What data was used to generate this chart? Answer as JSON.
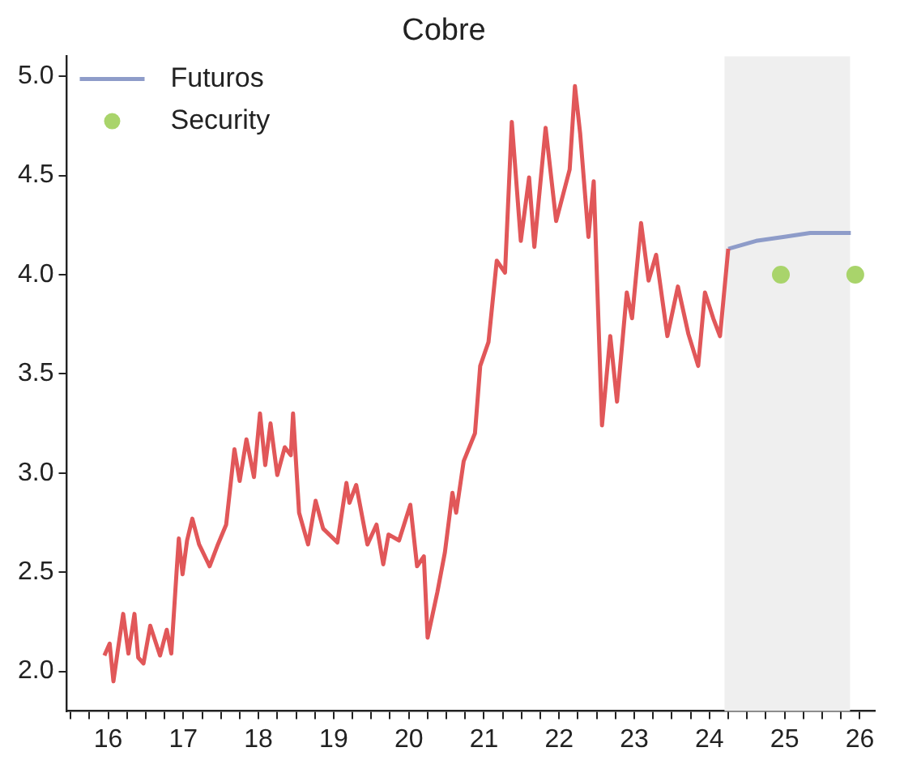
{
  "chart_data": {
    "type": "line",
    "title": "Cobre",
    "xlim": [
      15.45,
      26.2
    ],
    "xticks": [
      {
        "value": 15.5,
        "label": null
      },
      {
        "value": 15.75,
        "label": null
      },
      16,
      {
        "value": 16.25,
        "label": null
      },
      {
        "value": 16.5,
        "label": null
      },
      {
        "value": 16.75,
        "label": null
      },
      17,
      {
        "value": 17.25,
        "label": null
      },
      {
        "value": 17.5,
        "label": null
      },
      {
        "value": 17.75,
        "label": null
      },
      18,
      {
        "value": 18.25,
        "label": null
      },
      {
        "value": 18.5,
        "label": null
      },
      {
        "value": 18.75,
        "label": null
      },
      19,
      {
        "value": 19.25,
        "label": null
      },
      {
        "value": 19.5,
        "label": null
      },
      {
        "value": 19.75,
        "label": null
      },
      20,
      {
        "value": 20.25,
        "label": null
      },
      {
        "value": 20.5,
        "label": null
      },
      {
        "value": 20.75,
        "label": null
      },
      21,
      {
        "value": 21.25,
        "label": null
      },
      {
        "value": 21.5,
        "label": null
      },
      {
        "value": 21.75,
        "label": null
      },
      22,
      {
        "value": 22.25,
        "label": null
      },
      {
        "value": 22.5,
        "label": null
      },
      {
        "value": 22.75,
        "label": null
      },
      23,
      {
        "value": 23.25,
        "label": null
      },
      {
        "value": 23.5,
        "label": null
      },
      {
        "value": 23.75,
        "label": null
      },
      24,
      {
        "value": 24.25,
        "label": null
      },
      {
        "value": 24.5,
        "label": null
      },
      {
        "value": 24.75,
        "label": null
      },
      25,
      {
        "value": 25.25,
        "label": null
      },
      {
        "value": 25.5,
        "label": null
      },
      {
        "value": 25.75,
        "label": null
      },
      26
    ],
    "ylim": [
      1.8,
      5.1
    ],
    "yticks": [
      {
        "value": 2,
        "label": "2.0"
      },
      {
        "value": 2.5,
        "label": "2.5"
      },
      {
        "value": 3,
        "label": "3.0"
      },
      {
        "value": 3.5,
        "label": "3.5"
      },
      {
        "value": 4,
        "label": "4.0"
      },
      {
        "value": 4.5,
        "label": "4.5"
      },
      {
        "value": 5,
        "label": "5.0"
      }
    ],
    "grid": false,
    "legend": "top left",
    "bands": [
      {
        "axis": "x",
        "from": 24.2,
        "to": 25.87,
        "color": "#efefef"
      }
    ],
    "series": [
      {
        "color": "#e15759",
        "x": [
          15.95,
          16.02,
          16.07,
          16.13,
          16.2,
          16.27,
          16.35,
          16.4,
          16.47,
          16.56,
          16.69,
          16.78,
          16.84,
          16.91,
          16.94,
          16.99,
          17.05,
          17.12,
          17.21,
          17.35,
          17.46,
          17.57,
          17.68,
          17.75,
          17.84,
          17.94,
          18.02,
          18.09,
          18.16,
          18.25,
          18.35,
          18.43,
          18.46,
          18.54,
          18.66,
          18.76,
          18.86,
          19.05,
          19.17,
          19.21,
          19.3,
          19.45,
          19.57,
          19.66,
          19.73,
          19.87,
          20.02,
          20.11,
          20.2,
          20.25,
          20.38,
          20.48,
          20.58,
          20.63,
          20.73,
          20.88,
          20.95,
          21.06,
          21.17,
          21.28,
          21.37,
          21.49,
          21.6,
          21.67,
          21.74,
          21.82,
          21.96,
          22.14,
          22.21,
          22.28,
          22.39,
          22.46,
          22.57,
          22.68,
          22.77,
          22.9,
          22.97,
          23.09,
          23.19,
          23.29,
          23.44,
          23.58,
          23.72,
          23.85,
          23.94,
          24.05,
          24.14,
          24.19,
          24.25
        ],
        "values": [
          2.08,
          2.14,
          1.95,
          2.11,
          2.29,
          2.09,
          2.29,
          2.07,
          2.04,
          2.23,
          2.08,
          2.21,
          2.09,
          2.5,
          2.67,
          2.49,
          2.66,
          2.77,
          2.64,
          2.53,
          2.64,
          2.74,
          3.12,
          2.96,
          3.17,
          2.98,
          3.3,
          3.04,
          3.25,
          2.99,
          3.13,
          3.09,
          3.3,
          2.8,
          2.64,
          2.86,
          2.72,
          2.65,
          2.95,
          2.85,
          2.94,
          2.64,
          2.74,
          2.54,
          2.69,
          2.66,
          2.84,
          2.53,
          2.58,
          2.17,
          2.4,
          2.6,
          2.9,
          2.8,
          3.06,
          3.2,
          3.54,
          3.66,
          4.07,
          4.01,
          4.77,
          4.17,
          4.49,
          4.14,
          4.42,
          4.74,
          4.27,
          4.53,
          4.95,
          4.71,
          4.19,
          4.47,
          3.24,
          3.69,
          3.36,
          3.91,
          3.78,
          4.26,
          3.97,
          4.1,
          3.69,
          3.94,
          3.7,
          3.54,
          3.91,
          3.78,
          3.69,
          3.89,
          4.13
        ]
      },
      {
        "name": "Futuros",
        "color": "#8e9cc9",
        "x": [
          24.25,
          24.62,
          24.98,
          25.34,
          25.88
        ],
        "values": [
          4.13,
          4.17,
          4.19,
          4.21,
          4.21
        ]
      },
      {
        "type": "scatter",
        "name": "Security",
        "color": "#a9d46b",
        "marker": "circle",
        "x": [
          24.95,
          25.94
        ],
        "values": [
          4.0,
          4.0
        ]
      }
    ]
  }
}
